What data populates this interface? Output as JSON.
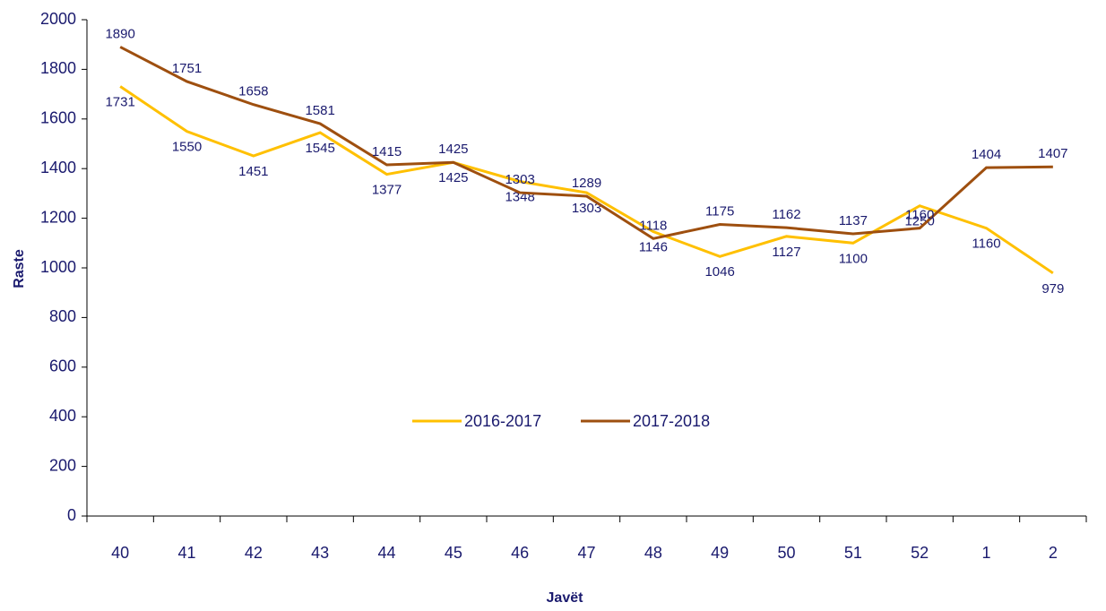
{
  "chart_data": {
    "type": "line",
    "x_label": "Javët",
    "y_label": "Raste",
    "categories": [
      "40",
      "41",
      "42",
      "43",
      "44",
      "45",
      "46",
      "47",
      "48",
      "49",
      "50",
      "51",
      "52",
      "1",
      "2"
    ],
    "series": [
      {
        "name": "2016-2017",
        "color": "#ffc000",
        "values": [
          1731,
          1550,
          1451,
          1545,
          1377,
          1425,
          1348,
          1303,
          1146,
          1046,
          1127,
          1100,
          1250,
          1160,
          979
        ]
      },
      {
        "name": "2017-2018",
        "color": "#9e4f0f",
        "values": [
          1890,
          1751,
          1658,
          1581,
          1415,
          1425,
          1303,
          1289,
          1118,
          1175,
          1162,
          1137,
          1160,
          1404,
          1407
        ]
      }
    ],
    "ylim": [
      0,
      2000
    ],
    "yticks": [
      0,
      200,
      400,
      600,
      800,
      1000,
      1200,
      1400,
      1600,
      1800,
      2000
    ],
    "legend": "center"
  }
}
